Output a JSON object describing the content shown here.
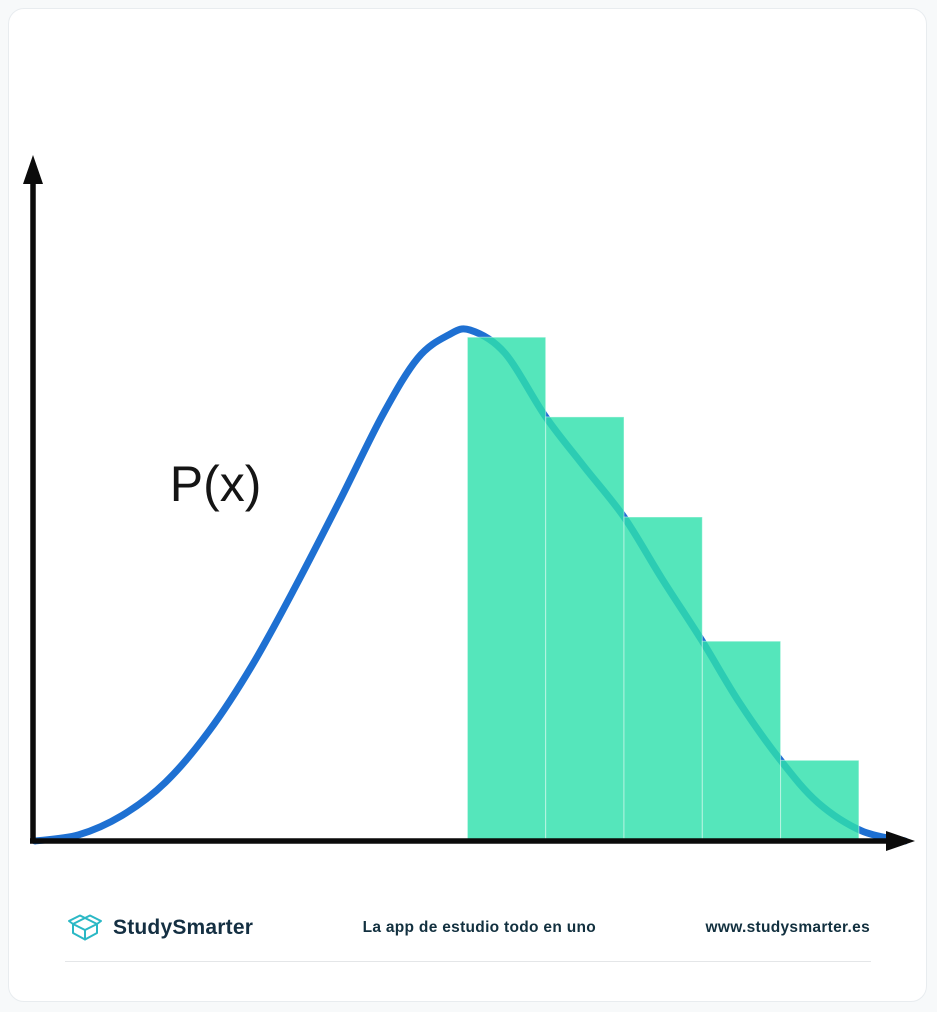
{
  "page": {
    "background": "#f7f9fa",
    "card_border": "#e8ecef"
  },
  "chart_data": {
    "type": "line",
    "title": "",
    "curve_label": "P(x)",
    "xlabel": "",
    "ylabel": "",
    "x_range": [
      0,
      10
    ],
    "y_range": [
      0,
      1
    ],
    "grid": false,
    "legend": "none",
    "axis_color": "#0b0b0b",
    "series": [
      {
        "name": "P(x) probability density curve",
        "kind": "curve",
        "color": "#1e70d2",
        "stroke_width": 7,
        "points": [
          [
            0,
            0
          ],
          [
            0.5,
            0.012
          ],
          [
            1.0,
            0.05
          ],
          [
            1.5,
            0.115
          ],
          [
            2.0,
            0.215
          ],
          [
            2.5,
            0.345
          ],
          [
            3.0,
            0.5
          ],
          [
            3.5,
            0.665
          ],
          [
            4.0,
            0.835
          ],
          [
            4.4,
            0.945
          ],
          [
            4.75,
            0.99
          ],
          [
            5.0,
            1.0
          ],
          [
            5.4,
            0.955
          ],
          [
            5.87,
            0.83
          ],
          [
            6.3,
            0.735
          ],
          [
            6.77,
            0.634
          ],
          [
            7.2,
            0.515
          ],
          [
            7.67,
            0.391
          ],
          [
            8.1,
            0.27
          ],
          [
            8.57,
            0.158
          ],
          [
            9.0,
            0.075
          ],
          [
            9.5,
            0.02
          ],
          [
            10,
            0
          ]
        ]
      }
    ],
    "bars": {
      "name": "histogram approximation of right-tail area under P(x)",
      "color": "#30e0ac",
      "opacity": 0.82,
      "bar_width": 0.9,
      "items": [
        {
          "x": 4.97,
          "height": 0.986
        },
        {
          "x": 5.87,
          "height": 0.83
        },
        {
          "x": 6.77,
          "height": 0.634
        },
        {
          "x": 7.67,
          "height": 0.391
        },
        {
          "x": 8.57,
          "height": 0.158
        }
      ]
    },
    "label_position": {
      "x": 1.55,
      "y": 0.665
    }
  },
  "footer": {
    "brand": "StudySmarter",
    "tagline": "La app de estudio todo en uno",
    "url": "www.studysmarter.es",
    "brand_color": "#142f42",
    "logo_color": "#2ab8c5"
  }
}
